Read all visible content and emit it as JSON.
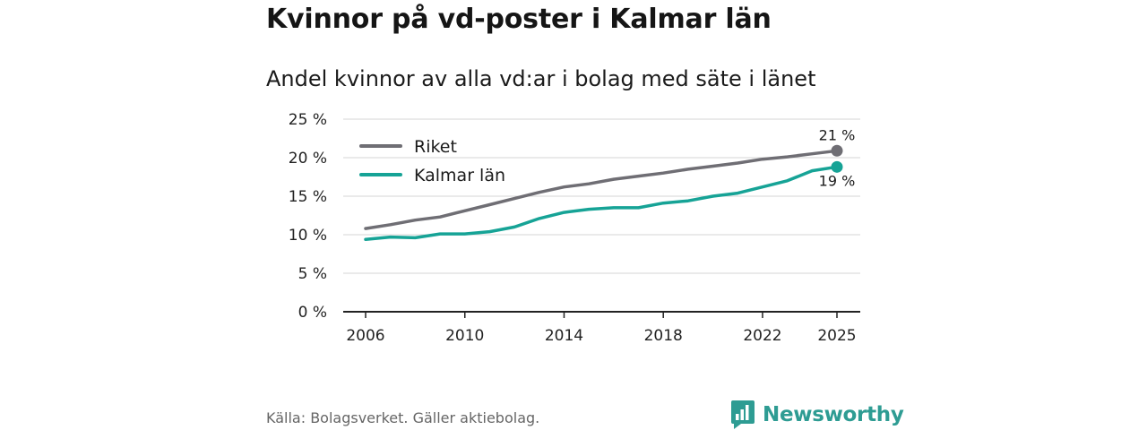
{
  "title": "Kvinnor på vd-poster i Kalmar län",
  "subtitle": "Andel kvinnor av alla vd:ar i bolag med säte i länet",
  "source": "Källa: Bolagsverket. Gäller aktiebolag.",
  "brand": "Newsworthy",
  "colors": {
    "riket": "#6f6e74",
    "kalmar": "#16a396",
    "grid": "#d6d6d6",
    "axis": "#222222",
    "brand": "#2e9c93"
  },
  "chart_data": {
    "type": "line",
    "title": "Kvinnor på vd-poster i Kalmar län",
    "subtitle": "Andel kvinnor av alla vd:ar i bolag med säte i länet",
    "xlabel": "",
    "ylabel": "",
    "x": [
      2006,
      2007,
      2008,
      2009,
      2010,
      2011,
      2012,
      2013,
      2014,
      2015,
      2016,
      2017,
      2018,
      2019,
      2020,
      2021,
      2022,
      2023,
      2024,
      2025
    ],
    "xlim": [
      2006,
      2025
    ],
    "ylim": [
      0,
      25
    ],
    "x_ticks": [
      2006,
      2010,
      2014,
      2018,
      2022,
      2025
    ],
    "y_ticks": [
      0,
      5,
      10,
      15,
      20,
      25
    ],
    "y_tick_labels": [
      "0 %",
      "5 %",
      "10 %",
      "15 %",
      "20 %",
      "25 %"
    ],
    "grid": true,
    "legend_position": "top-left",
    "series": [
      {
        "name": "Riket",
        "color": "#6f6e74",
        "values": [
          10.8,
          11.3,
          11.9,
          12.3,
          13.1,
          13.9,
          14.7,
          15.5,
          16.2,
          16.6,
          17.2,
          17.6,
          18.0,
          18.5,
          18.9,
          19.3,
          19.8,
          20.1,
          20.5,
          20.9
        ],
        "end_label": "21 %"
      },
      {
        "name": "Kalmar län",
        "color": "#16a396",
        "values": [
          9.4,
          9.7,
          9.6,
          10.1,
          10.1,
          10.4,
          11.0,
          12.1,
          12.9,
          13.3,
          13.5,
          13.5,
          14.1,
          14.4,
          15.0,
          15.4,
          16.2,
          17.0,
          18.3,
          18.8
        ],
        "end_label": "19 %"
      }
    ]
  }
}
